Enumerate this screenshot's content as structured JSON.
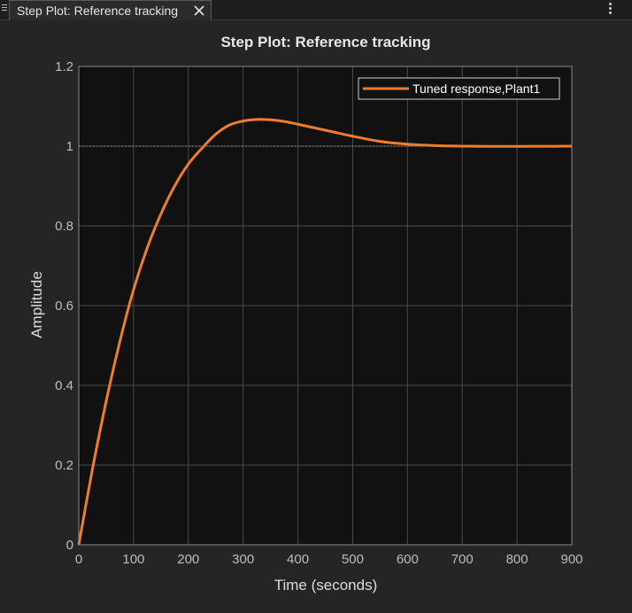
{
  "tab": {
    "title": "Step Plot: Reference tracking"
  },
  "icons": {
    "handle": "drag-handle-icon",
    "close": "close-icon",
    "menu": "kebab-menu-icon"
  },
  "colors": {
    "background": "#252525",
    "axes_background": "#111111",
    "grid": "#4a4a4a",
    "reference": "#8a8a8a",
    "response": "#f07d2b",
    "text": "#dcdcdc"
  },
  "chart_data": {
    "type": "line",
    "title": "Step Plot: Reference tracking",
    "xlabel": "Time (seconds)",
    "ylabel": "Amplitude",
    "xlim": [
      0,
      900
    ],
    "ylim": [
      0,
      1.2
    ],
    "xticks": [
      "0",
      "100",
      "200",
      "300",
      "400",
      "500",
      "600",
      "700",
      "800",
      "900"
    ],
    "yticks": [
      "0",
      "0.2",
      "0.4",
      "0.6",
      "0.8",
      "1",
      "1.2"
    ],
    "grid": true,
    "legend_position": "top-right",
    "reference_level": 1,
    "series": [
      {
        "name": "Tuned response,Plant1",
        "x": [
          0,
          25,
          50,
          75,
          100,
          125,
          150,
          175,
          200,
          225,
          250,
          275,
          300,
          325,
          350,
          375,
          400,
          450,
          500,
          550,
          600,
          650,
          700,
          750,
          800,
          850,
          900
        ],
        "values": [
          0,
          0.19,
          0.36,
          0.51,
          0.64,
          0.745,
          0.83,
          0.9,
          0.955,
          0.995,
          1.03,
          1.053,
          1.063,
          1.067,
          1.066,
          1.062,
          1.055,
          1.04,
          1.025,
          1.012,
          1.005,
          1.0015,
          1.0,
          0.9995,
          0.9995,
          0.9997,
          1.0
        ]
      }
    ]
  }
}
